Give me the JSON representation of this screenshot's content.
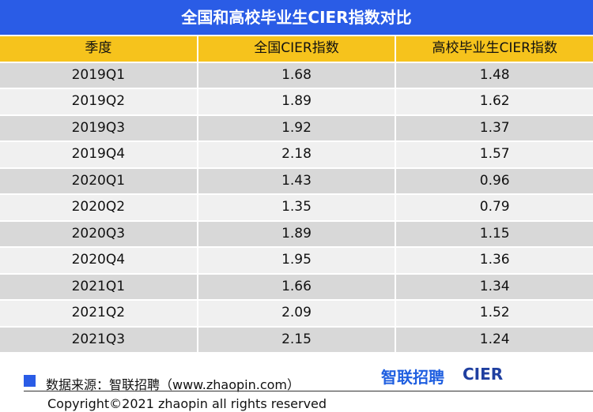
{
  "header": {
    "title": "全国和高校毕业生CIER指数对比"
  },
  "table": {
    "columns": [
      "季度",
      "全国CIER指数",
      "高校毕业生CIER指数"
    ],
    "rows": [
      [
        "2019Q1",
        "1.68",
        "1.48"
      ],
      [
        "2019Q2",
        "1.89",
        "1.62"
      ],
      [
        "2019Q3",
        "1.92",
        "1.37"
      ],
      [
        "2019Q4",
        "2.18",
        "1.57"
      ],
      [
        "2020Q1",
        "1.43",
        "0.96"
      ],
      [
        "2020Q2",
        "1.35",
        "0.79"
      ],
      [
        "2020Q3",
        "1.89",
        "1.15"
      ],
      [
        "2020Q4",
        "1.95",
        "1.36"
      ],
      [
        "2021Q1",
        "1.66",
        "1.34"
      ],
      [
        "2021Q2",
        "2.09",
        "1.52"
      ],
      [
        "2021Q3",
        "2.15",
        "1.24"
      ]
    ]
  },
  "footer": {
    "source": "数据来源：智联招聘（www.zhaopin.com）",
    "logo_zhaopin": "智联招聘",
    "logo_cier": "CIER",
    "copyright": "Copyright©2021 zhaopin all rights reserved"
  }
}
